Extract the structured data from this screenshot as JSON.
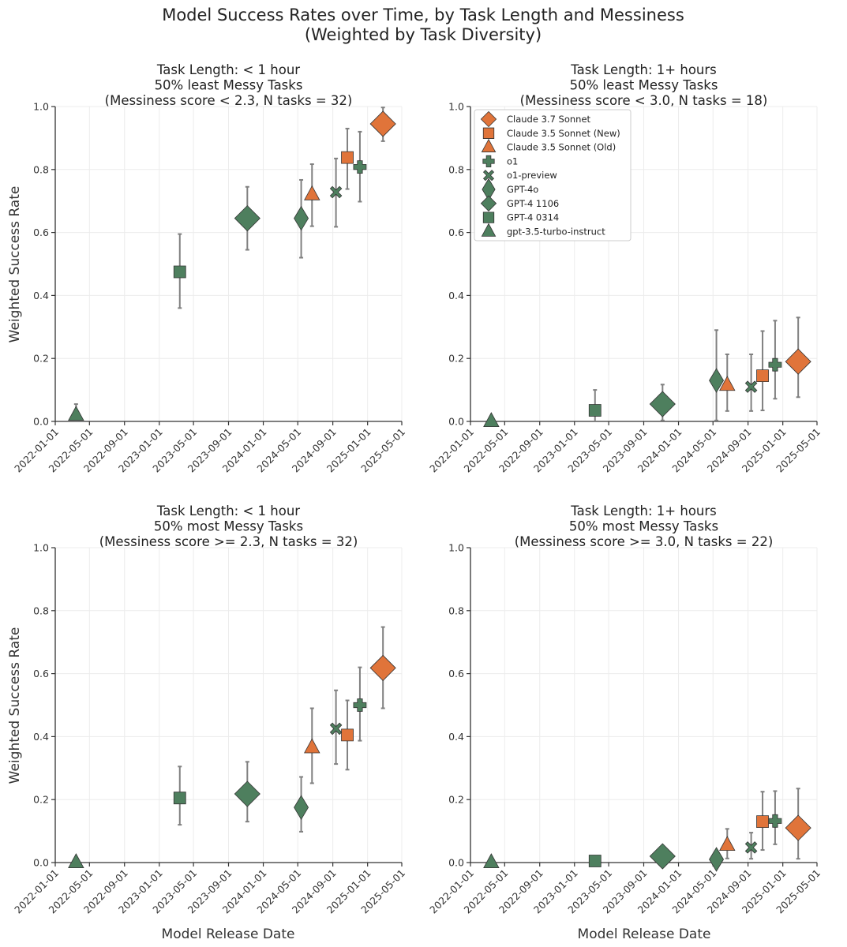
{
  "title_line1": "Model Success Rates over Time, by Task Length and Messiness",
  "title_line2": "(Weighted by Task Diversity)",
  "colors": {
    "anthropic": "#e0743a",
    "openai": "#4e7f5e",
    "errorbar": "#808080",
    "grid": "#ececec"
  },
  "chart_data": {
    "type": "scatter",
    "xlabel": "Model Release Date",
    "ylabel": "Weighted Success Rate",
    "xlim": [
      "2022-01-01",
      "2025-05-01"
    ],
    "ylim": [
      0,
      1
    ],
    "x_ticks": [
      "2022-01-01",
      "2022-05-01",
      "2022-09-01",
      "2023-01-01",
      "2023-05-01",
      "2023-09-01",
      "2024-01-01",
      "2024-05-01",
      "2024-09-01",
      "2025-01-01",
      "2025-05-01"
    ],
    "y_ticks": [
      "0.0",
      "0.2",
      "0.4",
      "0.6",
      "0.8",
      "1.0"
    ],
    "grid": true,
    "legend_placement": "top-left of top-right panel",
    "models": [
      {
        "name": "Claude 3.7 Sonnet",
        "date": "2025-02-24",
        "marker": "diamond",
        "color": "anthropic"
      },
      {
        "name": "Claude 3.5 Sonnet (New)",
        "date": "2024-10-22",
        "marker": "square",
        "color": "anthropic"
      },
      {
        "name": "Claude 3.5 Sonnet (Old)",
        "date": "2024-06-20",
        "marker": "triangle",
        "color": "anthropic"
      },
      {
        "name": "o1",
        "date": "2024-12-05",
        "marker": "plus",
        "color": "openai"
      },
      {
        "name": "o1-preview",
        "date": "2024-09-12",
        "marker": "x",
        "color": "openai"
      },
      {
        "name": "GPT-4o",
        "date": "2024-05-13",
        "marker": "thin_diamond",
        "color": "openai"
      },
      {
        "name": "GPT-4 1106",
        "date": "2023-11-06",
        "marker": "diamond",
        "color": "openai"
      },
      {
        "name": "GPT-4 0314",
        "date": "2023-03-14",
        "marker": "square",
        "color": "openai"
      },
      {
        "name": "gpt-3.5-turbo-instruct",
        "date": "2022-03-15",
        "marker": "triangle",
        "color": "openai"
      }
    ],
    "panels": [
      {
        "title": [
          "Task Length: < 1 hour",
          "50% least Messy Tasks",
          "(Messiness score < 2.3, N tasks = 32)"
        ],
        "values": [
          [
            0.945,
            0.89,
            0.997
          ],
          [
            0.838,
            0.738,
            0.93
          ],
          [
            0.72,
            0.62,
            0.817
          ],
          [
            0.808,
            0.698,
            0.92
          ],
          [
            0.728,
            0.618,
            0.835
          ],
          [
            0.645,
            0.52,
            0.767
          ],
          [
            0.645,
            0.545,
            0.745
          ],
          [
            0.475,
            0.36,
            0.595
          ],
          [
            0.02,
            0.0,
            0.055
          ]
        ]
      },
      {
        "title": [
          "Task Length: 1+ hours",
          "50% least Messy Tasks",
          "(Messiness score < 3.0, N tasks = 18)"
        ],
        "values": [
          [
            0.19,
            0.077,
            0.33
          ],
          [
            0.145,
            0.035,
            0.287
          ],
          [
            0.115,
            0.033,
            0.213
          ],
          [
            0.18,
            0.072,
            0.32
          ],
          [
            0.11,
            0.033,
            0.213
          ],
          [
            0.13,
            0.003,
            0.29
          ],
          [
            0.055,
            0.003,
            0.117
          ],
          [
            0.035,
            0.0,
            0.1
          ],
          [
            0.0,
            0.0,
            0.0
          ]
        ]
      },
      {
        "title": [
          "Task Length: < 1 hour",
          "50% most Messy Tasks",
          "(Messiness score >= 2.3, N tasks = 32)"
        ],
        "values": [
          [
            0.618,
            0.49,
            0.748
          ],
          [
            0.405,
            0.295,
            0.515
          ],
          [
            0.365,
            0.252,
            0.49
          ],
          [
            0.5,
            0.387,
            0.62
          ],
          [
            0.425,
            0.313,
            0.547
          ],
          [
            0.175,
            0.098,
            0.272
          ],
          [
            0.218,
            0.13,
            0.32
          ],
          [
            0.205,
            0.12,
            0.305
          ],
          [
            0.0,
            0.0,
            0.0
          ]
        ]
      },
      {
        "title": [
          "Task Length: 1+ hours",
          "50% most Messy Tasks",
          "(Messiness score >= 3.0, N tasks = 22)"
        ],
        "values": [
          [
            0.11,
            0.012,
            0.235
          ],
          [
            0.13,
            0.04,
            0.225
          ],
          [
            0.055,
            0.013,
            0.107
          ],
          [
            0.132,
            0.058,
            0.227
          ],
          [
            0.048,
            0.012,
            0.095
          ],
          [
            0.01,
            0.0,
            0.01
          ],
          [
            0.02,
            0.0,
            0.045
          ],
          [
            0.005,
            0.0,
            0.01
          ],
          [
            0.0,
            0.0,
            0.0
          ]
        ]
      }
    ]
  }
}
